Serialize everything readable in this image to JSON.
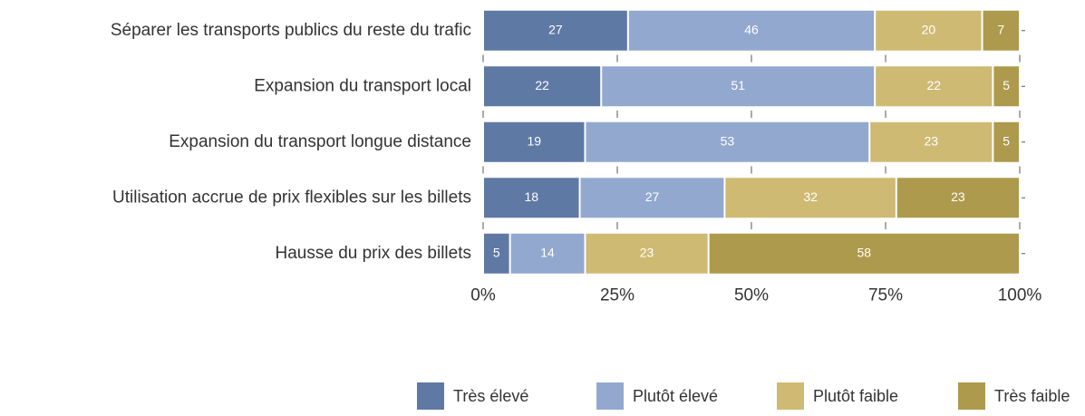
{
  "chart_data": {
    "type": "stacked-bar-horizontal",
    "categories": [
      "Séparer les transports publics du reste du trafic",
      "Expansion du transport local",
      "Expansion du transport longue distance",
      "Utilisation accrue de prix flexibles sur les billets",
      "Hausse du prix des billets"
    ],
    "series": [
      {
        "name": "Très élevé",
        "color": "#5f79a5",
        "values": [
          27,
          22,
          19,
          18,
          5
        ]
      },
      {
        "name": "Plutôt élevé",
        "color": "#92a8cf",
        "values": [
          46,
          51,
          53,
          27,
          14
        ]
      },
      {
        "name": "Plutôt faible",
        "color": "#cfba74",
        "values": [
          20,
          22,
          23,
          32,
          23
        ]
      },
      {
        "name": "Très faible",
        "color": "#ad9a4c",
        "values": [
          7,
          5,
          5,
          23,
          58
        ]
      }
    ],
    "xlim": [
      0,
      100
    ],
    "xticks": [
      {
        "value": 0,
        "label": "0%"
      },
      {
        "value": 25,
        "label": "25%"
      },
      {
        "value": 50,
        "label": "50%"
      },
      {
        "value": 75,
        "label": "75%"
      },
      {
        "value": 100,
        "label": "100%"
      }
    ],
    "legend": "bottom"
  }
}
